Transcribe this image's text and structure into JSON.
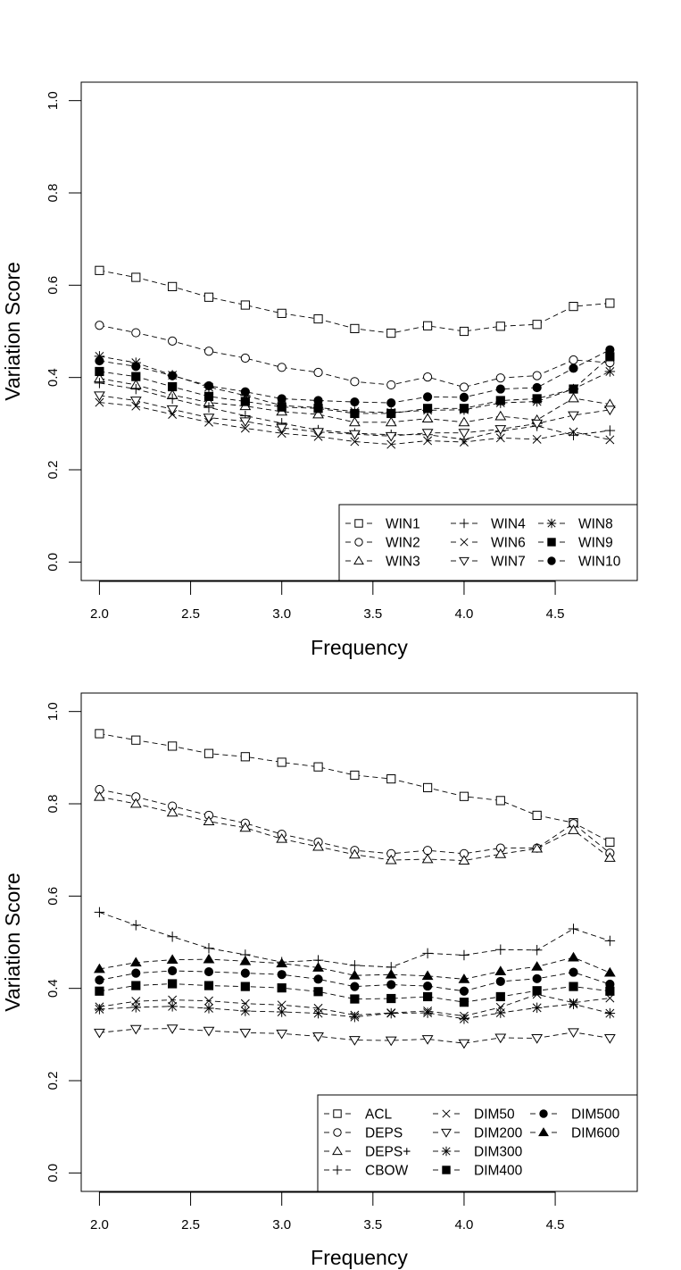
{
  "chart_data": [
    {
      "type": "line",
      "xlabel": "Frequency",
      "ylabel": "Variation Score",
      "xlim": [
        1.9,
        4.95
      ],
      "ylim": [
        -0.04,
        1.04
      ],
      "xticks": [
        "2.0",
        "2.5",
        "3.0",
        "3.5",
        "4.0",
        "4.5"
      ],
      "yticks": [
        "0.0",
        "0.2",
        "0.4",
        "0.6",
        "0.8",
        "1.0"
      ],
      "x": [
        2.0,
        2.2,
        2.4,
        2.6,
        2.8,
        3.0,
        3.2,
        3.4,
        3.6,
        3.8,
        4.0,
        4.2,
        4.4,
        4.6,
        4.8
      ],
      "legend": {
        "position": "bottom-right",
        "columns": 3
      },
      "series": [
        {
          "name": "WIN1",
          "marker": "square-open",
          "values": [
            0.632,
            0.617,
            0.597,
            0.574,
            0.557,
            0.539,
            0.527,
            0.506,
            0.496,
            0.512,
            0.5,
            0.511,
            0.515,
            0.554,
            0.561
          ]
        },
        {
          "name": "WIN2",
          "marker": "circle-open",
          "values": [
            0.513,
            0.497,
            0.479,
            0.457,
            0.442,
            0.422,
            0.411,
            0.391,
            0.384,
            0.401,
            0.379,
            0.399,
            0.404,
            0.438,
            0.432
          ]
        },
        {
          "name": "WIN3",
          "marker": "triangle-open",
          "values": [
            0.398,
            0.384,
            0.362,
            0.346,
            0.338,
            0.326,
            0.32,
            0.303,
            0.303,
            0.311,
            0.303,
            0.316,
            0.308,
            0.355,
            0.342
          ]
        },
        {
          "name": "WIN4",
          "marker": "plus",
          "values": [
            0.388,
            0.375,
            0.354,
            0.335,
            0.317,
            0.301,
            0.286,
            0.279,
            0.276,
            0.276,
            0.266,
            0.284,
            0.295,
            0.275,
            0.285
          ]
        },
        {
          "name": "WIN6",
          "marker": "cross",
          "values": [
            0.346,
            0.338,
            0.32,
            0.303,
            0.29,
            0.279,
            0.272,
            0.261,
            0.255,
            0.263,
            0.26,
            0.269,
            0.266,
            0.282,
            0.265
          ]
        },
        {
          "name": "WIN7",
          "marker": "triangle-down-open",
          "values": [
            0.361,
            0.35,
            0.331,
            0.313,
            0.305,
            0.291,
            0.282,
            0.277,
            0.273,
            0.28,
            0.28,
            0.288,
            0.3,
            0.318,
            0.33
          ]
        },
        {
          "name": "WIN8",
          "marker": "asterisk",
          "values": [
            0.446,
            0.432,
            0.405,
            0.379,
            0.361,
            0.339,
            0.335,
            0.326,
            0.324,
            0.329,
            0.33,
            0.345,
            0.348,
            0.375,
            0.413
          ]
        },
        {
          "name": "WIN9",
          "marker": "square-filled",
          "values": [
            0.413,
            0.402,
            0.38,
            0.359,
            0.348,
            0.336,
            0.333,
            0.322,
            0.322,
            0.333,
            0.333,
            0.35,
            0.354,
            0.375,
            0.445
          ]
        },
        {
          "name": "WIN10",
          "marker": "circle-filled",
          "values": [
            0.436,
            0.424,
            0.404,
            0.382,
            0.369,
            0.354,
            0.35,
            0.347,
            0.345,
            0.358,
            0.357,
            0.375,
            0.378,
            0.42,
            0.46
          ]
        }
      ]
    },
    {
      "type": "line",
      "xlabel": "Frequency",
      "ylabel": "Variation Score",
      "xlim": [
        1.9,
        4.95
      ],
      "ylim": [
        -0.04,
        1.04
      ],
      "xticks": [
        "2.0",
        "2.5",
        "3.0",
        "3.5",
        "4.0",
        "4.5"
      ],
      "yticks": [
        "0.0",
        "0.2",
        "0.4",
        "0.6",
        "0.8",
        "1.0"
      ],
      "x": [
        2.0,
        2.2,
        2.4,
        2.6,
        2.8,
        3.0,
        3.2,
        3.4,
        3.6,
        3.8,
        4.0,
        4.2,
        4.4,
        4.6,
        4.8
      ],
      "legend": {
        "position": "bottom-right",
        "columns": 3
      },
      "series": [
        {
          "name": "ACL",
          "marker": "square-open",
          "values": [
            0.952,
            0.938,
            0.925,
            0.909,
            0.902,
            0.89,
            0.88,
            0.862,
            0.854,
            0.835,
            0.816,
            0.807,
            0.775,
            0.759,
            0.717
          ]
        },
        {
          "name": "DEPS",
          "marker": "circle-open",
          "values": [
            0.831,
            0.815,
            0.795,
            0.775,
            0.758,
            0.734,
            0.717,
            0.699,
            0.692,
            0.699,
            0.692,
            0.704,
            0.704,
            0.757,
            0.693
          ]
        },
        {
          "name": "DEPS+",
          "marker": "triangle-open",
          "values": [
            0.815,
            0.8,
            0.781,
            0.762,
            0.748,
            0.724,
            0.707,
            0.69,
            0.678,
            0.68,
            0.677,
            0.691,
            0.703,
            0.743,
            0.683
          ]
        },
        {
          "name": "CBOW",
          "marker": "plus",
          "values": [
            0.565,
            0.537,
            0.512,
            0.487,
            0.473,
            0.457,
            0.461,
            0.45,
            0.446,
            0.476,
            0.472,
            0.484,
            0.483,
            0.529,
            0.503
          ]
        },
        {
          "name": "DIM50",
          "marker": "cross",
          "values": [
            0.36,
            0.372,
            0.375,
            0.373,
            0.367,
            0.364,
            0.357,
            0.342,
            0.347,
            0.351,
            0.34,
            0.359,
            0.387,
            0.369,
            0.379
          ]
        },
        {
          "name": "DIM200",
          "marker": "triangle-down-open",
          "values": [
            0.304,
            0.312,
            0.313,
            0.308,
            0.304,
            0.302,
            0.296,
            0.288,
            0.287,
            0.29,
            0.281,
            0.293,
            0.292,
            0.305,
            0.292
          ]
        },
        {
          "name": "DIM300",
          "marker": "asterisk",
          "values": [
            0.355,
            0.359,
            0.361,
            0.357,
            0.351,
            0.349,
            0.346,
            0.338,
            0.346,
            0.347,
            0.334,
            0.347,
            0.358,
            0.366,
            0.346
          ]
        },
        {
          "name": "DIM400",
          "marker": "square-filled",
          "values": [
            0.394,
            0.406,
            0.41,
            0.406,
            0.404,
            0.401,
            0.393,
            0.377,
            0.378,
            0.382,
            0.37,
            0.382,
            0.395,
            0.404,
            0.394
          ]
        },
        {
          "name": "DIM500",
          "marker": "circle-filled",
          "values": [
            0.418,
            0.433,
            0.438,
            0.436,
            0.433,
            0.43,
            0.42,
            0.404,
            0.408,
            0.405,
            0.394,
            0.415,
            0.421,
            0.435,
            0.409
          ]
        },
        {
          "name": "DIM600",
          "marker": "triangle-filled",
          "values": [
            0.442,
            0.456,
            0.462,
            0.463,
            0.459,
            0.454,
            0.445,
            0.428,
            0.43,
            0.427,
            0.42,
            0.437,
            0.447,
            0.467,
            0.434
          ]
        }
      ]
    }
  ]
}
